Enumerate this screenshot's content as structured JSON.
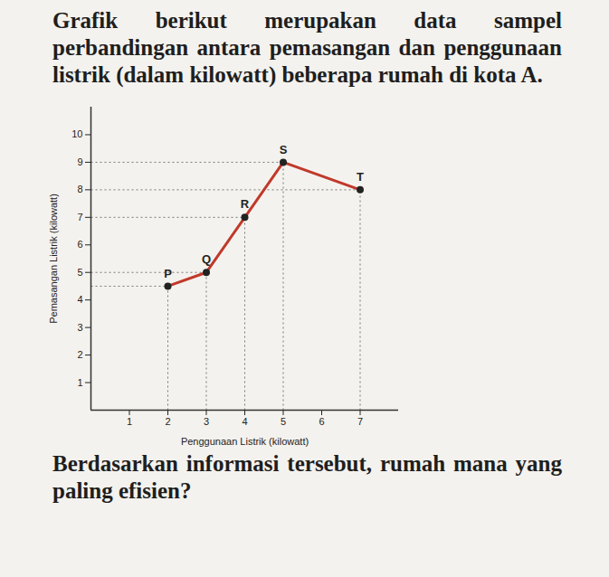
{
  "chart_data": {
    "type": "line",
    "title": "Grafik berikut merupakan data sampel perbandingan antara pemasangan dan penggunaan listrik (dalam kilowatt) beberapa rumah di kota A.",
    "subtitle": "Berdasarkan informasi tersebut, rumah mana yang paling efisien?",
    "x_label": "Penggunaan Listrik (kilowatt)",
    "y_label": "Pemasangan Listrik (kilowatt)",
    "x": [
      2,
      3,
      4,
      5,
      7
    ],
    "values": [
      4.5,
      5,
      7,
      9,
      8
    ],
    "labels": [
      "P",
      "Q",
      "R",
      "S",
      "T"
    ],
    "color": "#c0392b",
    "marker": "circle",
    "xlim": [
      0,
      8
    ],
    "ylim": [
      0,
      11
    ],
    "xticks": [
      1,
      2,
      3,
      4,
      5,
      6,
      7
    ],
    "yticks": [
      1,
      2,
      3,
      4,
      5,
      6,
      7,
      8,
      9,
      10
    ],
    "grid": false
  }
}
